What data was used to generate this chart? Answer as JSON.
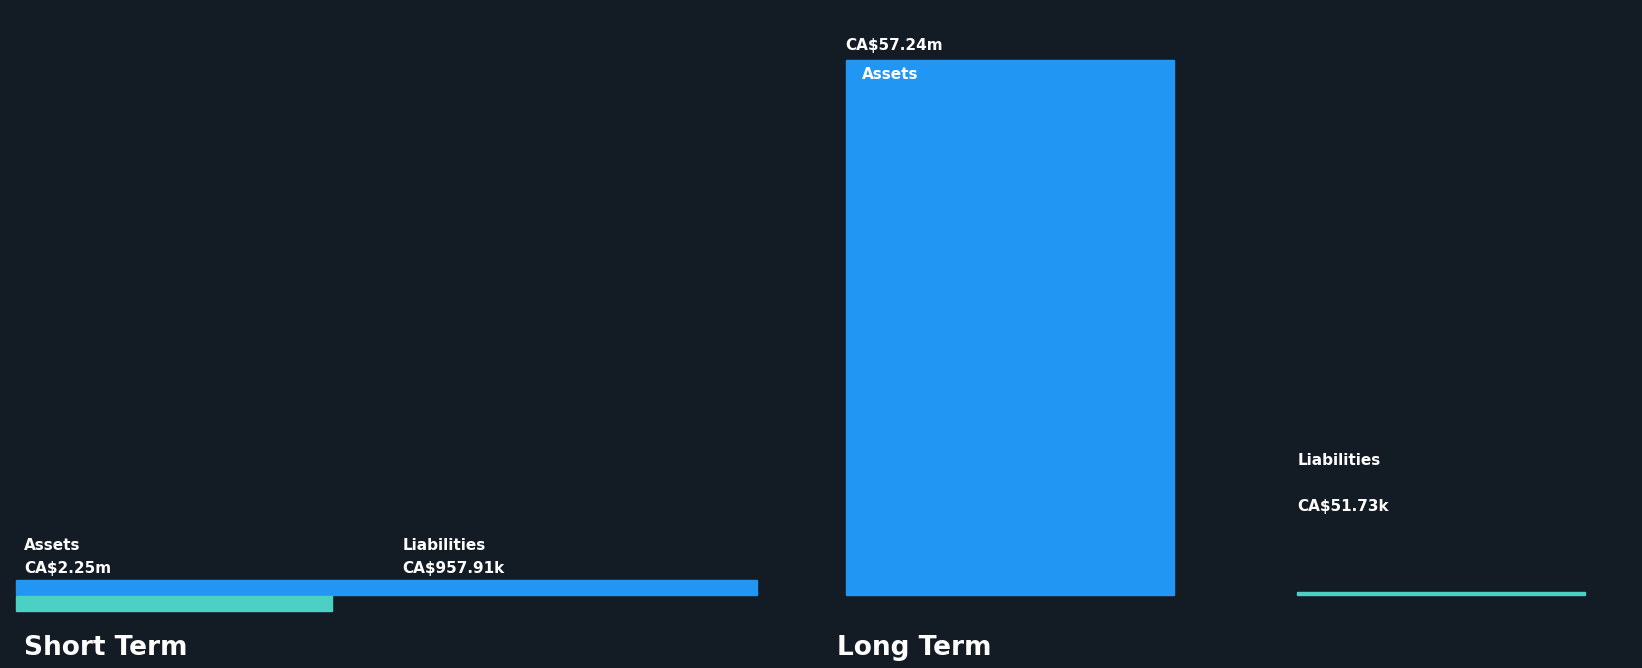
{
  "background_color": "#131b24",
  "text_color": "#ffffff",
  "asset_color": "#2196f3",
  "liability_color": "#4dd0c4",
  "short_term": {
    "assets_value": 2.25,
    "assets_label": "CA$2.25m",
    "liabilities_value": 0.95791,
    "liabilities_label": "CA$957.91k",
    "section_label": "Short Term"
  },
  "long_term": {
    "assets_value": 57.24,
    "assets_label": "CA$57.24m",
    "liabilities_value": 0.05173,
    "liabilities_label": "CA$51.73k",
    "section_label": "Long Term"
  },
  "bar_label_assets": "Assets",
  "bar_label_liabilities": "Liabilities",
  "label_fontsize": 11,
  "value_fontsize": 11,
  "section_fontsize": 19,
  "figsize": [
    16.42,
    6.68
  ],
  "dpi": 100
}
